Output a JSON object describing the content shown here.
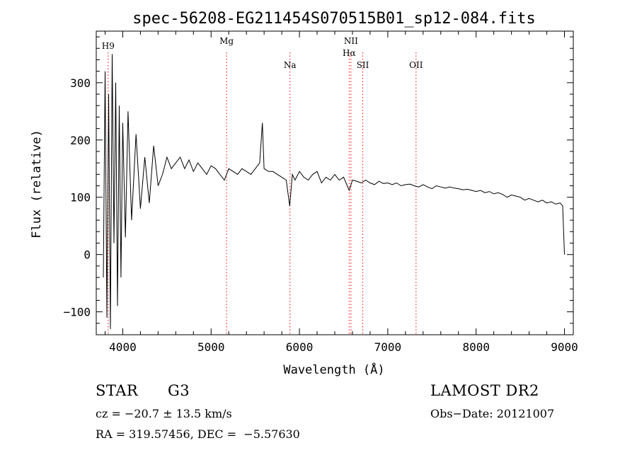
{
  "chart_data": {
    "type": "line",
    "title": "spec-56208-EG211454S070515B01_sp12-084.fits",
    "xlabel": "Wavelength (Å)",
    "ylabel": "Flux (relative)",
    "xlim": [
      3700,
      9100
    ],
    "ylim": [
      -140,
      390
    ],
    "xticks": [
      4000,
      5000,
      6000,
      7000,
      8000,
      9000
    ],
    "yticks": [
      -100,
      0,
      100,
      200,
      300
    ],
    "grid": false,
    "line_color": "#000000",
    "marker_color": "#ff0000",
    "series": [
      {
        "x": [
          3780,
          3800,
          3820,
          3840,
          3860,
          3880,
          3900,
          3920,
          3940,
          3960,
          3980,
          4000,
          4030,
          4060,
          4100,
          4150,
          4200,
          4250,
          4300,
          4350,
          4400,
          4450,
          4500,
          4550,
          4600,
          4650,
          4700,
          4750,
          4800,
          4850,
          4900,
          4950,
          5000,
          5050,
          5100,
          5150,
          5200,
          5250,
          5300,
          5350,
          5400,
          5450,
          5500,
          5550,
          5580,
          5600,
          5650,
          5700,
          5750,
          5800,
          5850,
          5890,
          5920,
          5950,
          6000,
          6050,
          6100,
          6150,
          6200,
          6250,
          6300,
          6350,
          6400,
          6450,
          6500,
          6563,
          6600,
          6650,
          6700,
          6750,
          6800,
          6850,
          6900,
          6950,
          7000,
          7050,
          7100,
          7150,
          7200,
          7250,
          7300,
          7350,
          7400,
          7450,
          7500,
          7550,
          7600,
          7650,
          7700,
          7750,
          7800,
          7850,
          7900,
          7950,
          8000,
          8050,
          8100,
          8150,
          8200,
          8250,
          8300,
          8350,
          8400,
          8450,
          8500,
          8550,
          8600,
          8650,
          8700,
          8750,
          8800,
          8850,
          8900,
          8950,
          8980,
          9000
        ],
        "y": [
          -40,
          320,
          -110,
          280,
          -130,
          350,
          20,
          300,
          -90,
          260,
          -40,
          230,
          30,
          250,
          60,
          210,
          80,
          170,
          90,
          190,
          120,
          140,
          170,
          150,
          160,
          170,
          150,
          165,
          145,
          160,
          150,
          140,
          155,
          150,
          140,
          130,
          150,
          145,
          140,
          150,
          145,
          140,
          150,
          160,
          230,
          150,
          145,
          145,
          140,
          135,
          130,
          85,
          140,
          130,
          145,
          135,
          130,
          140,
          145,
          125,
          135,
          130,
          140,
          130,
          135,
          112,
          130,
          128,
          125,
          130,
          125,
          122,
          128,
          124,
          125,
          122,
          125,
          120,
          122,
          123,
          120,
          118,
          122,
          118,
          115,
          120,
          118,
          116,
          118,
          116,
          115,
          113,
          114,
          112,
          110,
          112,
          108,
          110,
          106,
          108,
          105,
          100,
          104,
          102,
          100,
          95,
          98,
          95,
          92,
          95,
          90,
          92,
          88,
          90,
          85,
          0
        ]
      }
    ],
    "lines": [
      {
        "label": "Mg",
        "x": 5175,
        "row": 1
      },
      {
        "label": "Na",
        "x": 5893,
        "row": 2
      },
      {
        "label": "NII",
        "x": 6583,
        "row": 1
      },
      {
        "label": "Hα",
        "x": 6563,
        "row": 1.5
      },
      {
        "label": "SII",
        "x": 6717,
        "row": 2
      },
      {
        "label": "OII",
        "x": 7320,
        "row": 2
      },
      {
        "label": "H9",
        "x": 3835,
        "row": 1.2
      }
    ]
  },
  "info": {
    "class_label": "STAR",
    "subclass": "G3",
    "survey": "LAMOST DR2",
    "cz_text": "cz = −20.7 ± 13.5 km/s",
    "obs_date": "Obs−Date: 20121007",
    "radec": "RA = 319.57456, DEC =  −5.57630"
  }
}
